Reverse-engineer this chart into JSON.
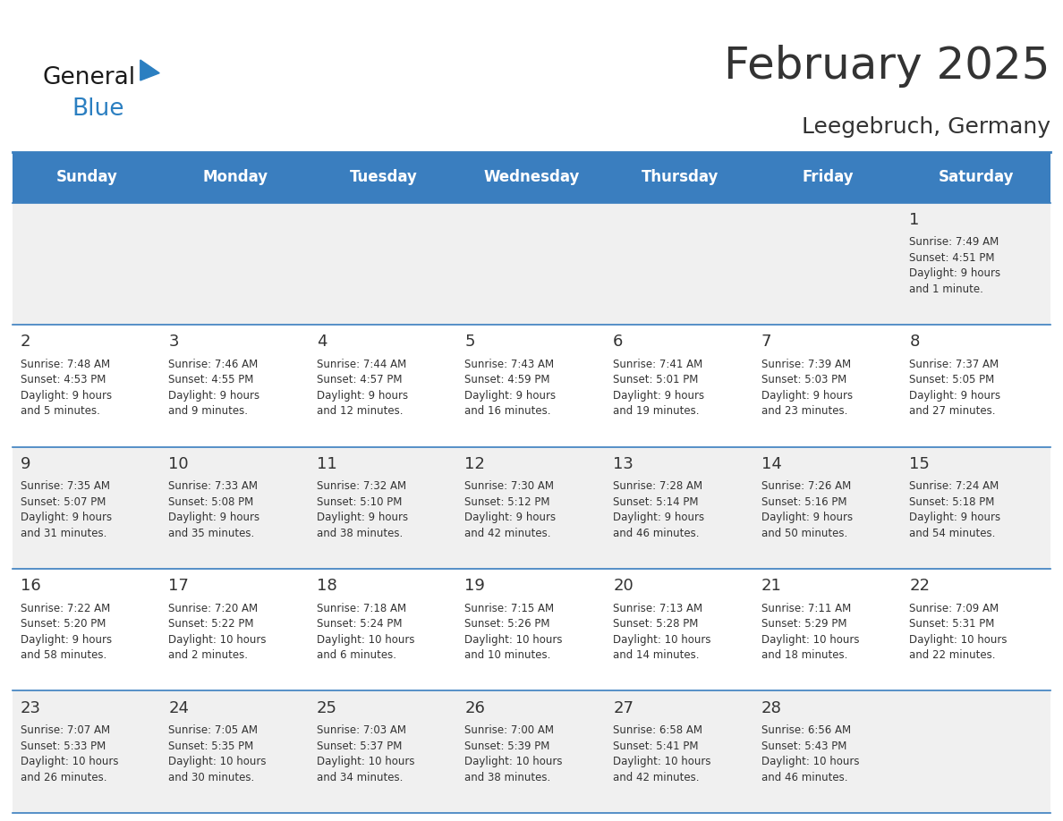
{
  "title": "February 2025",
  "subtitle": "Leegebruch, Germany",
  "header_color": "#3a7ebf",
  "header_text_color": "#ffffff",
  "days_of_week": [
    "Sunday",
    "Monday",
    "Tuesday",
    "Wednesday",
    "Thursday",
    "Friday",
    "Saturday"
  ],
  "bg_color": "#ffffff",
  "cell_bg_even": "#f0f0f0",
  "cell_bg_odd": "#ffffff",
  "border_color": "#3a7ebf",
  "day_number_color": "#333333",
  "info_text_color": "#333333",
  "calendar_data": [
    [
      {
        "day": "",
        "info": ""
      },
      {
        "day": "",
        "info": ""
      },
      {
        "day": "",
        "info": ""
      },
      {
        "day": "",
        "info": ""
      },
      {
        "day": "",
        "info": ""
      },
      {
        "day": "",
        "info": ""
      },
      {
        "day": "1",
        "info": "Sunrise: 7:49 AM\nSunset: 4:51 PM\nDaylight: 9 hours\nand 1 minute."
      }
    ],
    [
      {
        "day": "2",
        "info": "Sunrise: 7:48 AM\nSunset: 4:53 PM\nDaylight: 9 hours\nand 5 minutes."
      },
      {
        "day": "3",
        "info": "Sunrise: 7:46 AM\nSunset: 4:55 PM\nDaylight: 9 hours\nand 9 minutes."
      },
      {
        "day": "4",
        "info": "Sunrise: 7:44 AM\nSunset: 4:57 PM\nDaylight: 9 hours\nand 12 minutes."
      },
      {
        "day": "5",
        "info": "Sunrise: 7:43 AM\nSunset: 4:59 PM\nDaylight: 9 hours\nand 16 minutes."
      },
      {
        "day": "6",
        "info": "Sunrise: 7:41 AM\nSunset: 5:01 PM\nDaylight: 9 hours\nand 19 minutes."
      },
      {
        "day": "7",
        "info": "Sunrise: 7:39 AM\nSunset: 5:03 PM\nDaylight: 9 hours\nand 23 minutes."
      },
      {
        "day": "8",
        "info": "Sunrise: 7:37 AM\nSunset: 5:05 PM\nDaylight: 9 hours\nand 27 minutes."
      }
    ],
    [
      {
        "day": "9",
        "info": "Sunrise: 7:35 AM\nSunset: 5:07 PM\nDaylight: 9 hours\nand 31 minutes."
      },
      {
        "day": "10",
        "info": "Sunrise: 7:33 AM\nSunset: 5:08 PM\nDaylight: 9 hours\nand 35 minutes."
      },
      {
        "day": "11",
        "info": "Sunrise: 7:32 AM\nSunset: 5:10 PM\nDaylight: 9 hours\nand 38 minutes."
      },
      {
        "day": "12",
        "info": "Sunrise: 7:30 AM\nSunset: 5:12 PM\nDaylight: 9 hours\nand 42 minutes."
      },
      {
        "day": "13",
        "info": "Sunrise: 7:28 AM\nSunset: 5:14 PM\nDaylight: 9 hours\nand 46 minutes."
      },
      {
        "day": "14",
        "info": "Sunrise: 7:26 AM\nSunset: 5:16 PM\nDaylight: 9 hours\nand 50 minutes."
      },
      {
        "day": "15",
        "info": "Sunrise: 7:24 AM\nSunset: 5:18 PM\nDaylight: 9 hours\nand 54 minutes."
      }
    ],
    [
      {
        "day": "16",
        "info": "Sunrise: 7:22 AM\nSunset: 5:20 PM\nDaylight: 9 hours\nand 58 minutes."
      },
      {
        "day": "17",
        "info": "Sunrise: 7:20 AM\nSunset: 5:22 PM\nDaylight: 10 hours\nand 2 minutes."
      },
      {
        "day": "18",
        "info": "Sunrise: 7:18 AM\nSunset: 5:24 PM\nDaylight: 10 hours\nand 6 minutes."
      },
      {
        "day": "19",
        "info": "Sunrise: 7:15 AM\nSunset: 5:26 PM\nDaylight: 10 hours\nand 10 minutes."
      },
      {
        "day": "20",
        "info": "Sunrise: 7:13 AM\nSunset: 5:28 PM\nDaylight: 10 hours\nand 14 minutes."
      },
      {
        "day": "21",
        "info": "Sunrise: 7:11 AM\nSunset: 5:29 PM\nDaylight: 10 hours\nand 18 minutes."
      },
      {
        "day": "22",
        "info": "Sunrise: 7:09 AM\nSunset: 5:31 PM\nDaylight: 10 hours\nand 22 minutes."
      }
    ],
    [
      {
        "day": "23",
        "info": "Sunrise: 7:07 AM\nSunset: 5:33 PM\nDaylight: 10 hours\nand 26 minutes."
      },
      {
        "day": "24",
        "info": "Sunrise: 7:05 AM\nSunset: 5:35 PM\nDaylight: 10 hours\nand 30 minutes."
      },
      {
        "day": "25",
        "info": "Sunrise: 7:03 AM\nSunset: 5:37 PM\nDaylight: 10 hours\nand 34 minutes."
      },
      {
        "day": "26",
        "info": "Sunrise: 7:00 AM\nSunset: 5:39 PM\nDaylight: 10 hours\nand 38 minutes."
      },
      {
        "day": "27",
        "info": "Sunrise: 6:58 AM\nSunset: 5:41 PM\nDaylight: 10 hours\nand 42 minutes."
      },
      {
        "day": "28",
        "info": "Sunrise: 6:56 AM\nSunset: 5:43 PM\nDaylight: 10 hours\nand 46 minutes."
      },
      {
        "day": "",
        "info": ""
      }
    ]
  ],
  "logo_color_general": "#1a1a1a",
  "logo_color_blue": "#2b7fc1",
  "logo_triangle_color": "#2b7fc1"
}
